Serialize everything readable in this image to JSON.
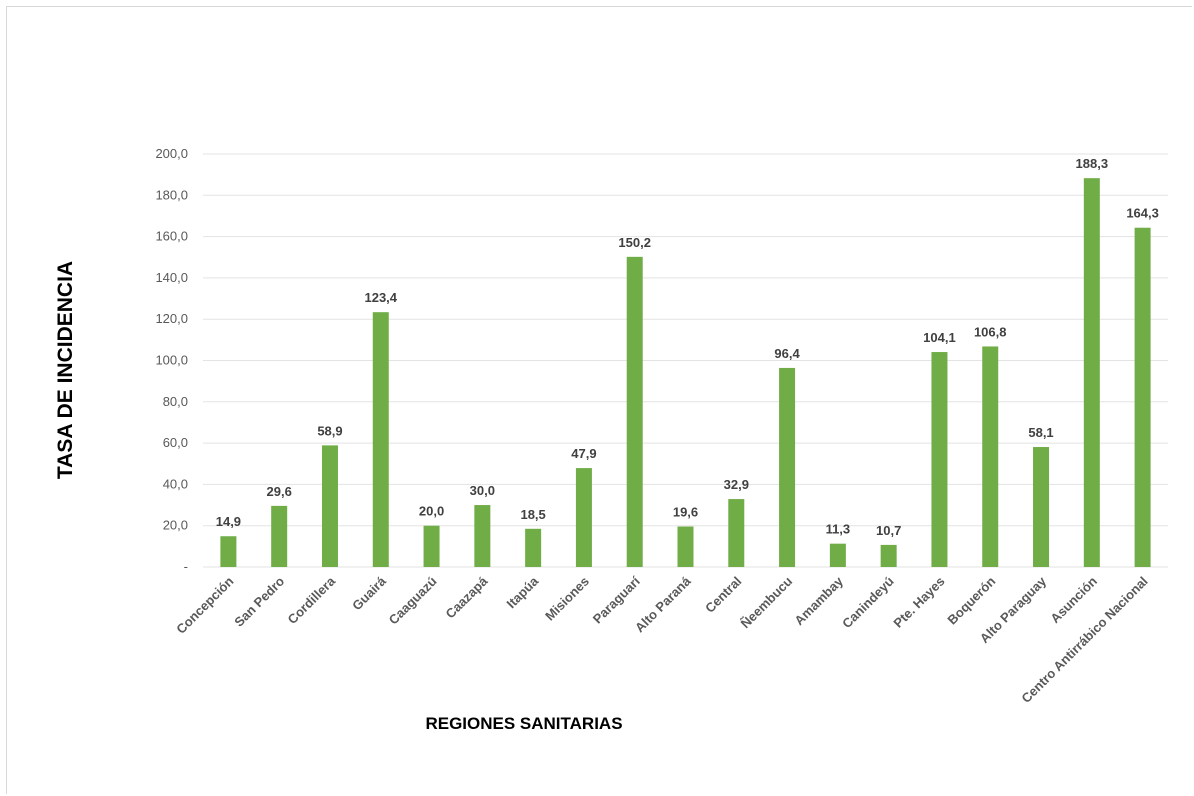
{
  "chart_data": {
    "type": "bar",
    "title": "",
    "xlabel": "REGIONES SANITARIAS",
    "ylabel": "TASA DE INCIDENCIA",
    "ylim": [
      0,
      200
    ],
    "yticks": [
      0,
      20,
      40,
      60,
      80,
      100,
      120,
      140,
      160,
      180,
      200
    ],
    "ytick_labels": [
      "-",
      "20,0",
      "40,0",
      "60,0",
      "80,0",
      "100,0",
      "120,0",
      "140,0",
      "160,0",
      "180,0",
      "200,0"
    ],
    "grid": true,
    "legend": "none",
    "bar_color": "#70ad47",
    "categories": [
      "Concepción",
      "San Pedro",
      "Cordillera",
      "Guairá",
      "Caaguazú",
      "Caazapá",
      "Itapúa",
      "Misiones",
      "Paraguarí",
      "Alto Paraná",
      "Central",
      "Ñeembucu",
      "Amambay",
      "Canindeyú",
      "Pte. Hayes",
      "Boquerón",
      "Alto Paraguay",
      "Asunción",
      "Centro Antirrábico Nacional"
    ],
    "values": [
      14.9,
      29.6,
      58.9,
      123.4,
      20.0,
      30.0,
      18.5,
      47.9,
      150.2,
      19.6,
      32.9,
      96.4,
      11.3,
      10.7,
      104.1,
      106.8,
      58.1,
      188.3,
      164.3
    ],
    "value_labels": [
      "14,9",
      "29,6",
      "58,9",
      "123,4",
      "20,0",
      "30,0",
      "18,5",
      "47,9",
      "150,2",
      "19,6",
      "32,9",
      "96,4",
      "11,3",
      "10,7",
      "104,1",
      "106,8",
      "58,1",
      "188,3",
      "164,3"
    ]
  }
}
